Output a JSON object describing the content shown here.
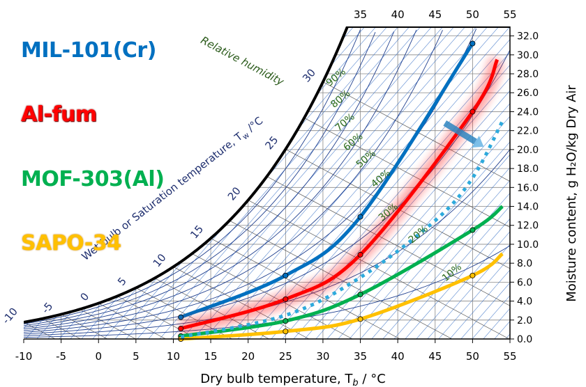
{
  "chart_data": {
    "type": "line",
    "xlabel": "Dry bulb temperature, T",
    "xlabel_sub": "b",
    "xlabel_unit": " / °C",
    "ylabel": "Moisture content,  g H₂O/kg Dry Air",
    "wetbulb_label": "Wet bulb or Saturation temperature, T",
    "wetbulb_label_sub": "w",
    "wetbulb_label_unit": " /°C",
    "rh_title": "Relative humidity",
    "xlim": [
      -10,
      55
    ],
    "ylim": [
      0,
      33
    ],
    "x_ticks": [
      "-10",
      "-5",
      "0",
      "5",
      "10",
      "15",
      "20",
      "25",
      "30",
      "35",
      "40",
      "45",
      "50",
      "55"
    ],
    "top_ticks": [
      "35",
      "40",
      "45",
      "50",
      "55"
    ],
    "y_ticks": [
      "0.0",
      "2.0",
      "4.0",
      "6.0",
      "8.0",
      "10.0",
      "12.0",
      "14.0",
      "16.0",
      "18.0",
      "20.0",
      "22.0",
      "24.0",
      "26.0",
      "28.0",
      "30.0",
      "32.0"
    ],
    "wetbulb_ticks": [
      {
        "label": "-10",
        "t": -10
      },
      {
        "label": "-5",
        "t": -5
      },
      {
        "label": "0",
        "t": 0
      },
      {
        "label": "5",
        "t": 5
      },
      {
        "label": "10",
        "t": 10
      },
      {
        "label": "15",
        "t": 15
      },
      {
        "label": "20",
        "t": 20
      },
      {
        "label": "25",
        "t": 25
      },
      {
        "label": "30",
        "t": 30
      }
    ],
    "rh_labels": [
      {
        "label": "10%",
        "rh": 0.1,
        "t": 47.5
      },
      {
        "label": "20%",
        "rh": 0.2,
        "t": 43
      },
      {
        "label": "30%",
        "rh": 0.3,
        "t": 39
      },
      {
        "label": "40%",
        "rh": 0.4,
        "t": 38
      },
      {
        "label": "50%",
        "rh": 0.5,
        "t": 36
      },
      {
        "label": "60%",
        "rh": 0.6,
        "t": 34.3
      },
      {
        "label": "70%",
        "rh": 0.7,
        "t": 33.2
      },
      {
        "label": "80%",
        "rh": 0.8,
        "t": 32.6
      },
      {
        "label": "90%",
        "rh": 0.9,
        "t": 32
      }
    ],
    "series": [
      {
        "name": "MIL-101(Cr)",
        "color": "#0070c0",
        "points": [
          [
            11,
            2.3
          ],
          [
            25,
            6.7
          ],
          [
            35,
            12.9
          ],
          [
            50,
            31.2
          ]
        ]
      },
      {
        "name": "Al-fum",
        "color": "#ff0000",
        "points": [
          [
            11,
            1.1
          ],
          [
            25,
            4.2
          ],
          [
            35,
            8.9
          ],
          [
            50,
            24.0
          ],
          [
            53.3,
            29.5
          ]
        ]
      },
      {
        "name": "MOF-303(Al)",
        "color": "#00b050",
        "points": [
          [
            11,
            0.3
          ],
          [
            25,
            1.9
          ],
          [
            35,
            4.7
          ],
          [
            50,
            11.5
          ],
          [
            54,
            14.0
          ]
        ]
      },
      {
        "name": "SAPO-34",
        "color": "#ffc000",
        "points": [
          [
            11,
            0.0
          ],
          [
            25,
            0.8
          ],
          [
            35,
            2.1
          ],
          [
            50,
            6.7
          ],
          [
            54,
            9.0
          ]
        ]
      },
      {
        "name": "",
        "color": "#2eaadc",
        "style": "dotted",
        "points": [
          [
            11,
            0.2
          ],
          [
            25,
            2.5
          ],
          [
            35,
            6.5
          ],
          [
            45,
            12.5
          ],
          [
            50,
            17.0
          ],
          [
            54,
            23.0
          ]
        ]
      }
    ],
    "annotation_arrow": {
      "from": [
        46.3,
        22.8
      ],
      "to": [
        51.5,
        20.3
      ],
      "color": "#2e86c1"
    }
  }
}
